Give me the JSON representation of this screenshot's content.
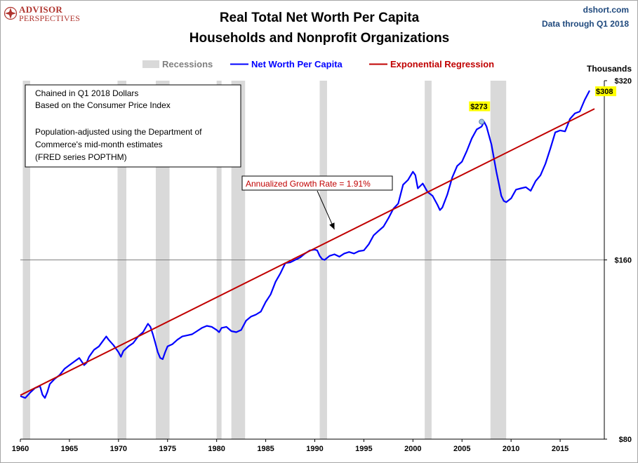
{
  "logo": {
    "line1": "ADVISOR",
    "line2": "PERSPECTIVES",
    "color": "#b0352f"
  },
  "source": "dshort.com",
  "data_through": "Data through Q1 2018",
  "colors": {
    "series": "#0000ff",
    "regression": "#c00000",
    "recession": "#d9d9d9",
    "corner_text": "#1f497d"
  },
  "chart_data": {
    "type": "line",
    "title": "Real Total Net Worth Per Capita",
    "subtitle": "Households and Nonprofit Organizations",
    "unit_label": "Thousands",
    "y_scale": "log",
    "ylim": [
      80,
      320
    ],
    "xlim": [
      1960,
      2019.5
    ],
    "grid": false,
    "legend_position": "top-center",
    "x_ticks": [
      {
        "value": 1960,
        "label": "1960"
      },
      {
        "value": 1965,
        "label": "1965"
      },
      {
        "value": 1970,
        "label": "1970"
      },
      {
        "value": 1975,
        "label": "1975"
      },
      {
        "value": 1980,
        "label": "1980"
      },
      {
        "value": 1985,
        "label": "1985"
      },
      {
        "value": 1990,
        "label": "1990"
      },
      {
        "value": 1995,
        "label": "1995"
      },
      {
        "value": 2000,
        "label": "2000"
      },
      {
        "value": 2005,
        "label": "2005"
      },
      {
        "value": 2010,
        "label": "2010"
      },
      {
        "value": 2015,
        "label": "2015"
      }
    ],
    "y_ticks": [
      {
        "value": 320,
        "label": "$320"
      },
      {
        "value": 160,
        "label": "$160"
      },
      {
        "value": 80,
        "label": "$80"
      }
    ],
    "legend": [
      {
        "label": "Recessions",
        "kind": "band"
      },
      {
        "label": "Net Worth Per Capita",
        "kind": "line"
      },
      {
        "label": "Exponential Regression",
        "kind": "line"
      }
    ],
    "recessions": [
      {
        "start": 1960.25,
        "end": 1961.0
      },
      {
        "start": 1969.9,
        "end": 1970.8
      },
      {
        "start": 1973.8,
        "end": 1975.2
      },
      {
        "start": 1980.0,
        "end": 1980.5
      },
      {
        "start": 1981.5,
        "end": 1982.9
      },
      {
        "start": 1990.5,
        "end": 1991.25
      },
      {
        "start": 2001.2,
        "end": 2001.9
      },
      {
        "start": 2007.9,
        "end": 2009.5
      }
    ],
    "series": [
      {
        "name": "Net Worth Per Capita",
        "color": "#0000ff",
        "x": [
          1960.0,
          1960.5,
          1961.0,
          1961.5,
          1962.0,
          1962.25,
          1962.5,
          1962.75,
          1963.0,
          1963.5,
          1964.0,
          1964.5,
          1965.0,
          1965.5,
          1966.0,
          1966.5,
          1966.75,
          1967.0,
          1967.5,
          1968.0,
          1968.5,
          1968.75,
          1969.0,
          1969.5,
          1970.0,
          1970.25,
          1970.5,
          1971.0,
          1971.5,
          1972.0,
          1972.5,
          1973.0,
          1973.25,
          1973.5,
          1973.75,
          1974.0,
          1974.25,
          1974.5,
          1974.75,
          1975.0,
          1975.5,
          1976.0,
          1976.5,
          1977.0,
          1977.5,
          1978.0,
          1978.5,
          1979.0,
          1979.5,
          1980.0,
          1980.25,
          1980.5,
          1981.0,
          1981.5,
          1982.0,
          1982.5,
          1983.0,
          1983.5,
          1984.0,
          1984.5,
          1985.0,
          1985.5,
          1986.0,
          1986.5,
          1987.0,
          1987.5,
          1988.0,
          1988.5,
          1989.0,
          1989.5,
          1990.0,
          1990.25,
          1990.5,
          1990.75,
          1991.0,
          1991.5,
          1992.0,
          1992.5,
          1993.0,
          1993.5,
          1994.0,
          1994.5,
          1995.0,
          1995.5,
          1996.0,
          1996.5,
          1997.0,
          1997.5,
          1998.0,
          1998.5,
          1999.0,
          1999.5,
          2000.0,
          2000.25,
          2000.5,
          2001.0,
          2001.5,
          2002.0,
          2002.5,
          2002.75,
          2003.0,
          2003.5,
          2004.0,
          2004.5,
          2005.0,
          2005.5,
          2006.0,
          2006.5,
          2007.0,
          2007.25,
          2007.5,
          2008.0,
          2008.5,
          2008.75,
          2009.0,
          2009.25,
          2009.5,
          2010.0,
          2010.5,
          2011.0,
          2011.5,
          2012.0,
          2012.5,
          2013.0,
          2013.5,
          2014.0,
          2014.5,
          2015.0,
          2015.5,
          2016.0,
          2016.5,
          2017.0,
          2017.5,
          2018.0
        ],
        "values": [
          94.5,
          93.8,
          95.8,
          97.5,
          98.2,
          95.0,
          93.8,
          96.0,
          99.0,
          101.0,
          102.5,
          105.0,
          106.5,
          108.0,
          109.5,
          106.5,
          107.5,
          110.0,
          113.0,
          114.5,
          117.5,
          119.0,
          117.5,
          115.0,
          112.0,
          110.0,
          112.5,
          114.5,
          116.0,
          119.0,
          121.0,
          125.0,
          123.5,
          120.0,
          116.0,
          112.0,
          109.5,
          109.0,
          112.0,
          114.5,
          115.5,
          117.5,
          119.0,
          119.5,
          120.0,
          121.5,
          123.0,
          124.0,
          123.5,
          122.0,
          121.0,
          123.0,
          123.5,
          121.5,
          121.0,
          122.0,
          126.5,
          128.5,
          129.5,
          131.0,
          136.0,
          140.0,
          147.0,
          152.0,
          158.0,
          158.5,
          160.0,
          161.5,
          164.0,
          166.0,
          166.5,
          166.0,
          162.5,
          160.5,
          160.0,
          162.5,
          163.5,
          162.0,
          164.0,
          165.0,
          164.0,
          165.5,
          166.0,
          170.0,
          176.0,
          179.0,
          182.0,
          188.0,
          195.0,
          199.0,
          214.0,
          218.0,
          225.0,
          222.0,
          211.0,
          215.0,
          208.0,
          205.0,
          198.0,
          194.0,
          196.0,
          206.0,
          220.0,
          230.0,
          234.0,
          244.0,
          256.0,
          265.0,
          268.0,
          273.0,
          268.0,
          250.0,
          225.0,
          215.0,
          205.0,
          201.0,
          200.0,
          203.0,
          210.0,
          211.0,
          212.0,
          209.0,
          217.0,
          222.0,
          232.0,
          246.0,
          262.0,
          264.0,
          263.0,
          276.0,
          282.0,
          284.0,
          297.0,
          308.0
        ]
      },
      {
        "name": "Exponential Regression",
        "color": "#c00000",
        "x": [
          1960.0,
          2018.5
        ],
        "values": [
          94.8,
          287.0
        ],
        "annual_growth_rate": 1.91
      }
    ],
    "annotations": {
      "growth_label": "Annualized Growth Rate = 1.91%",
      "peak_label": "$273",
      "peak_x": 2007.0,
      "peak_value": 273,
      "last_label": "$308",
      "last_x": 2018.0,
      "last_value": 308,
      "arrow_target": {
        "x": 1992.0,
        "value": 180.0
      }
    },
    "notes": [
      "Chained in Q1 2018  Dollars",
      "Based on the Consumer Price Index",
      "",
      "Population-adjusted using the Department of",
      "Commerce's mid-month estimates",
      "(FRED series POPTHM)"
    ]
  }
}
